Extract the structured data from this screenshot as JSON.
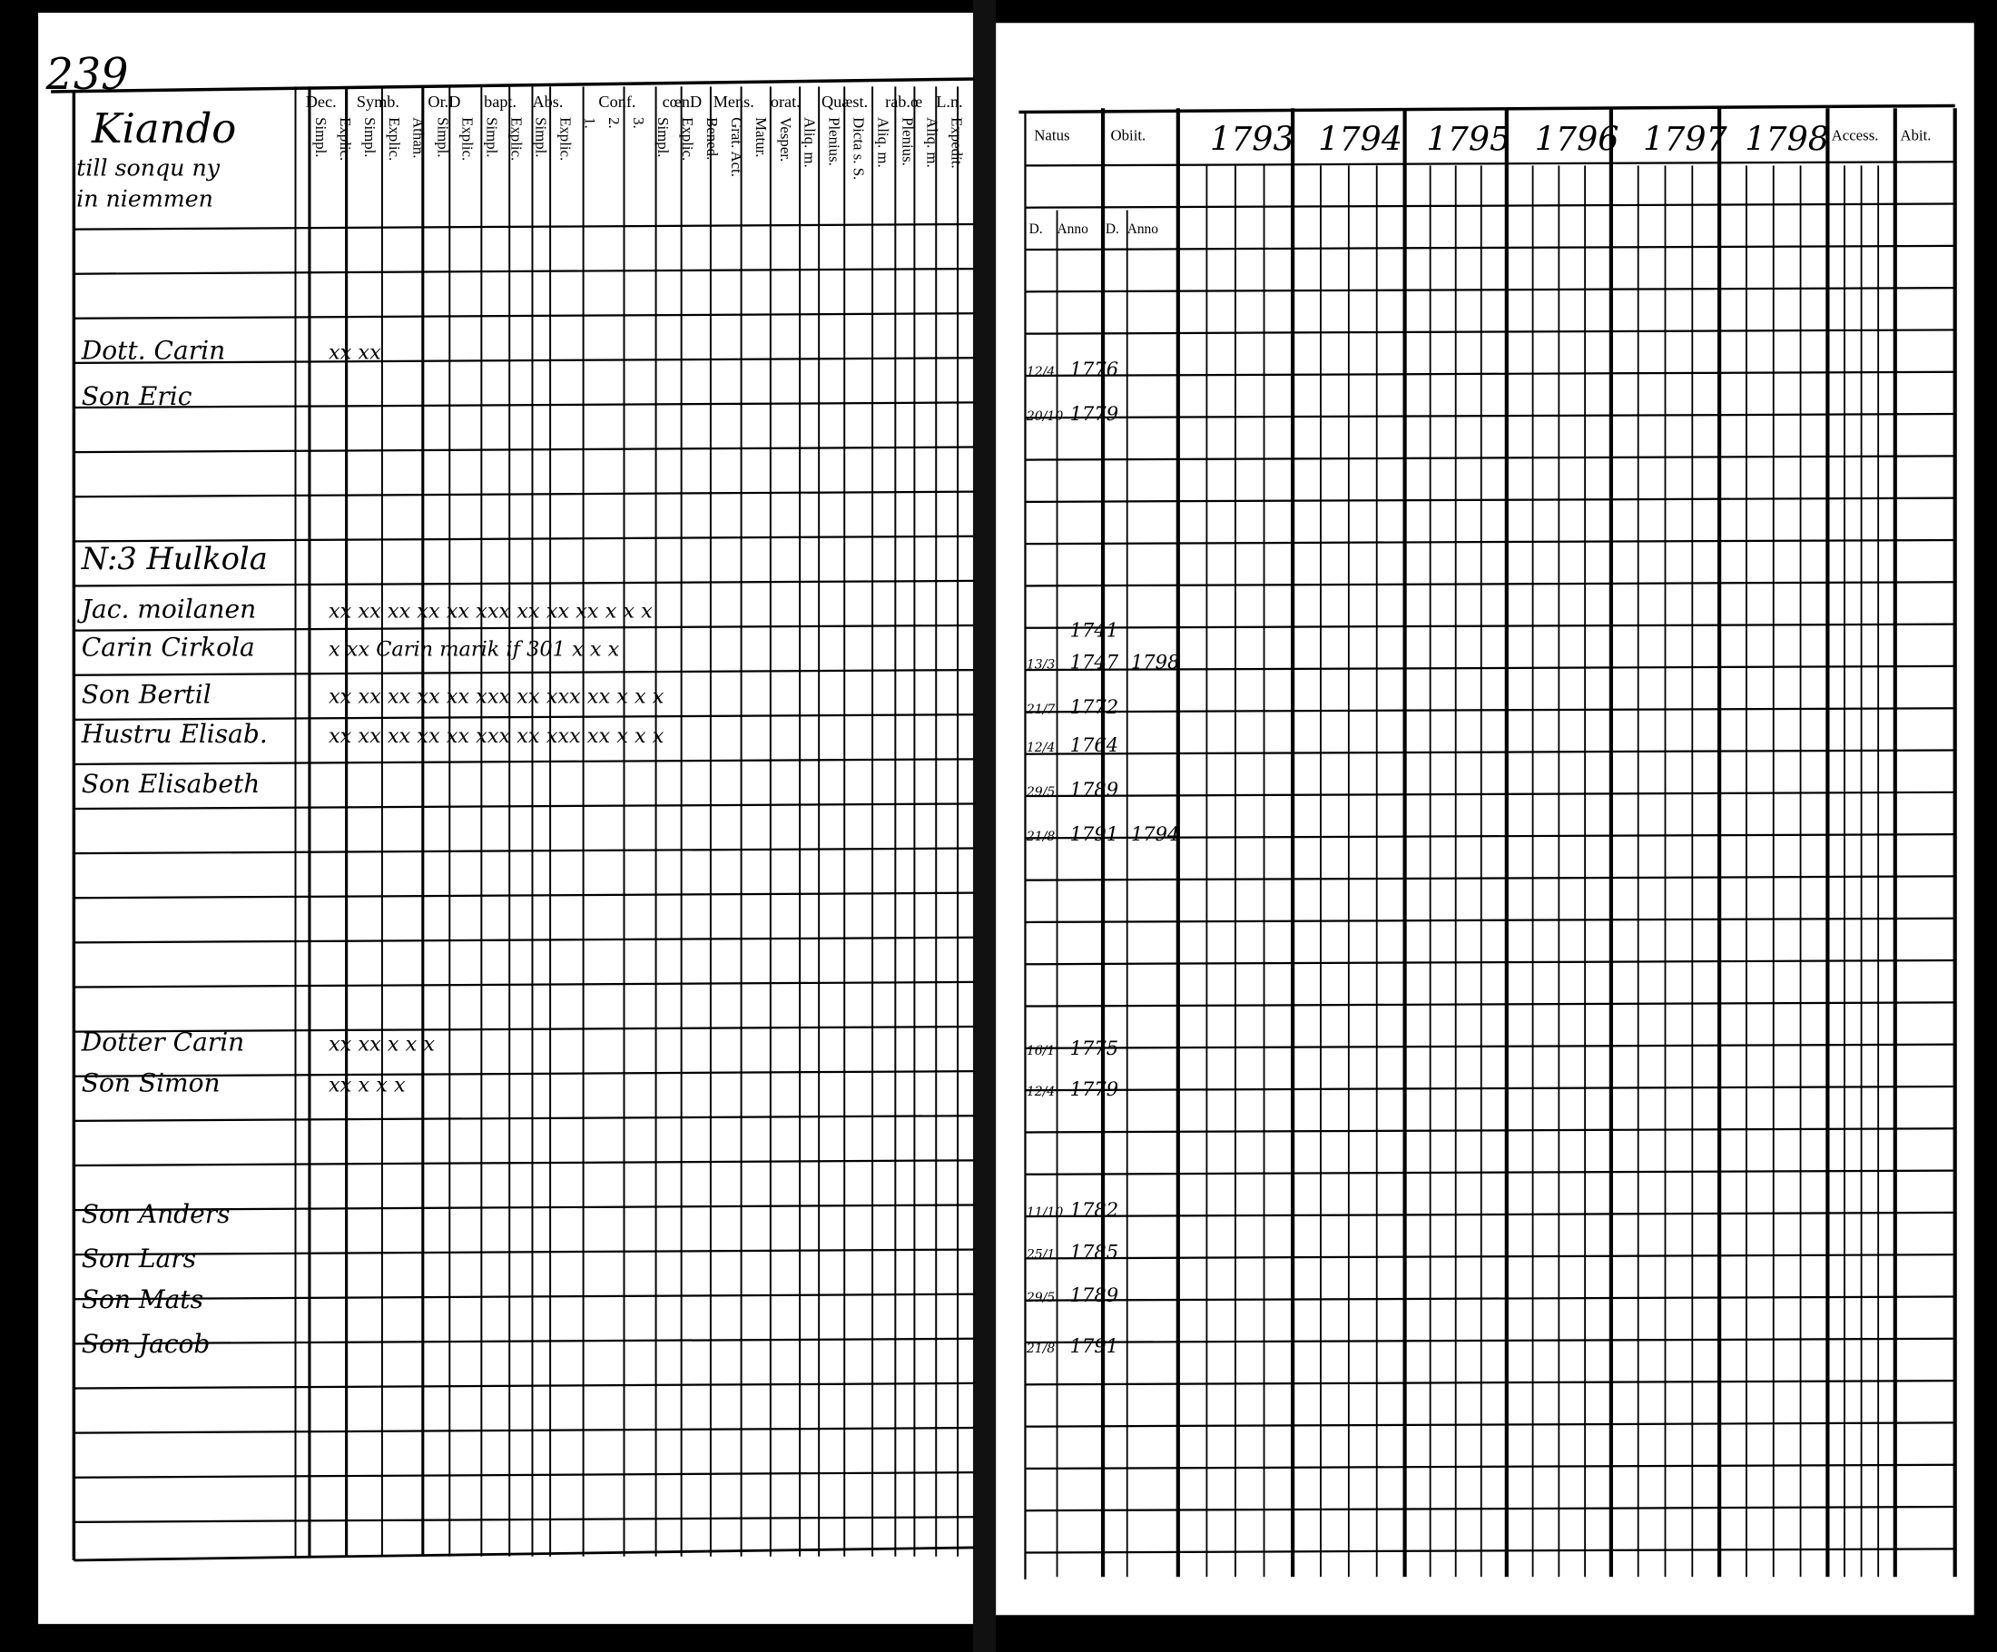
{
  "left_page": {
    "page_number": "239",
    "village_heading": [
      "Kiando",
      "till sonqu ny",
      "in niemmen"
    ],
    "column_headers": [
      "Dec.",
      "Symb.",
      "Or.D",
      "bapt.",
      "Abs.",
      "Conf.",
      "cœnD",
      "Mens.",
      "orat.",
      "Quæst.",
      "rab.œ",
      "L.n."
    ],
    "sub_headers": [
      "Simpl.",
      "Explic.",
      "Simpl.",
      "Explic.",
      "Athan.",
      "Simpl.",
      "Explic.",
      "Simpl.",
      "Explic.",
      "Simpl.",
      "Explic.",
      "1.",
      "2.",
      "3.",
      "Simpl.",
      "Explic.",
      "Bened.",
      "Grat. Act.",
      "Matur.",
      "Vesper.",
      "Aliq. m.",
      "Plenius.",
      "Dicta s. S.",
      "Aliq. m.",
      "Plenius.",
      "Aliq. m.",
      "Expedit."
    ],
    "entries": [
      {
        "name": "Dott. Carin",
        "marks": "xx  xx"
      },
      {
        "name": "Son Eric",
        "marks": ""
      },
      {
        "name": "N:3 Hulkola",
        "marks": ""
      },
      {
        "name": "Jac. moilanen",
        "marks": "xx  xx  xx  xx  xx  xxx  xx  xx  xx  x  x  x"
      },
      {
        "name": "Carin Cirkola",
        "marks": "x  xx   Carin marik if 301   x  x  x"
      },
      {
        "name": "Son Bertil",
        "marks": "xx  xx  xx  xx  xx  xxx  xx  xxx  xx  x  x  x"
      },
      {
        "name": "Hustru Elisab.",
        "marks": "xx  xx  xx  xx  xx  xxx  xx  xxx  xx  x  x  x"
      },
      {
        "name": "Son Elisabeth",
        "marks": ""
      },
      {
        "name": "Dotter Carin",
        "marks": "xx  xx                       x  x  x"
      },
      {
        "name": "Son Simon",
        "marks": "xx                            x  x  x"
      },
      {
        "name": "Son Anders",
        "marks": ""
      },
      {
        "name": "Son Lars",
        "marks": ""
      },
      {
        "name": "Son Mats",
        "marks": ""
      },
      {
        "name": "Son Jacob",
        "marks": ""
      }
    ]
  },
  "right_page": {
    "headers": [
      "Natus",
      "Obiit.",
      "1793",
      "1794",
      "1795",
      "1796",
      "1797",
      "1798",
      "Access.",
      "Abit."
    ],
    "sub_headers": [
      "D.",
      "Anno",
      "D.",
      "Anno"
    ],
    "births": [
      {
        "day": "12/4",
        "year": "1776",
        "obiit": ""
      },
      {
        "day": "20/10",
        "year": "1779",
        "obiit": ""
      },
      {
        "day": "",
        "year": "1741",
        "obiit": ""
      },
      {
        "day": "13/3",
        "year": "1747",
        "obiit": "1798"
      },
      {
        "day": "21/7",
        "year": "1772",
        "obiit": ""
      },
      {
        "day": "12/4",
        "year": "1764",
        "obiit": ""
      },
      {
        "day": "29/5",
        "year": "1789",
        "obiit": ""
      },
      {
        "day": "21/8",
        "year": "1791",
        "obiit": "1794"
      },
      {
        "day": "16/1",
        "year": "1775",
        "obiit": ""
      },
      {
        "day": "12/4",
        "year": "1779",
        "obiit": ""
      },
      {
        "day": "11/10",
        "year": "1782",
        "obiit": ""
      },
      {
        "day": "25/1",
        "year": "1785",
        "obiit": ""
      },
      {
        "day": "29/5",
        "year": "1789",
        "obiit": ""
      },
      {
        "day": "21/8",
        "year": "1791",
        "obiit": ""
      }
    ]
  }
}
